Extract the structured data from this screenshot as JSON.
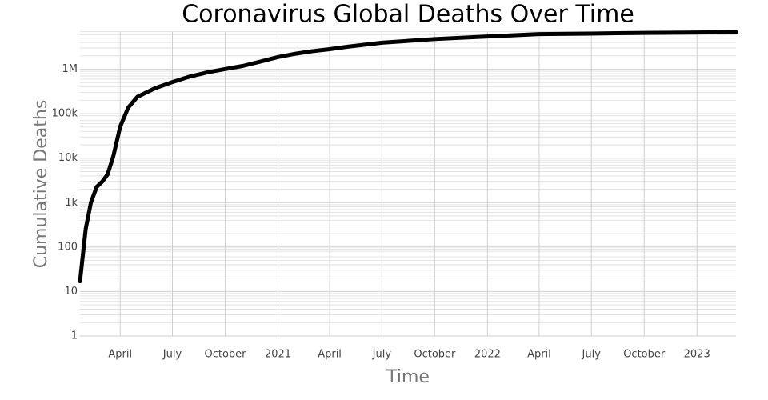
{
  "chart_data": {
    "type": "line",
    "title": "Coronavirus Global Deaths Over Time",
    "xlabel": "Time",
    "ylabel": "Cumulative Deaths",
    "yscale": "log",
    "grid": true,
    "x": [
      "2020-01-22",
      "2020-02-01",
      "2020-02-10",
      "2020-02-20",
      "2020-03-01",
      "2020-03-10",
      "2020-03-20",
      "2020-04-01",
      "2020-04-15",
      "2020-05-01",
      "2020-06-01",
      "2020-07-01",
      "2020-08-01",
      "2020-09-01",
      "2020-10-01",
      "2020-11-01",
      "2020-12-01",
      "2021-01-01",
      "2021-02-01",
      "2021-03-01",
      "2021-04-01",
      "2021-05-01",
      "2021-06-01",
      "2021-07-01",
      "2021-10-01",
      "2022-01-01",
      "2022-04-01",
      "2022-07-01",
      "2022-10-01",
      "2023-01-01",
      "2023-03-10"
    ],
    "series": [
      {
        "name": "Deaths",
        "color": "#000000",
        "values": [
          17,
          259,
          1000,
          2250,
          3000,
          4300,
          11000,
          51000,
          137000,
          240000,
          375000,
          515000,
          690000,
          855000,
          1010000,
          1190000,
          1480000,
          1880000,
          2240000,
          2540000,
          2830000,
          3200000,
          3560000,
          3950000,
          4780000,
          5450000,
          6180000,
          6350000,
          6560000,
          6700000,
          6880000
        ]
      }
    ],
    "xlim": [
      "2020-01-22",
      "2023-03-10"
    ],
    "xticks": [
      {
        "value": "2020-04-01",
        "label": "April"
      },
      {
        "value": "2020-07-01",
        "label": "July"
      },
      {
        "value": "2020-10-01",
        "label": "October"
      },
      {
        "value": "2021-01-01",
        "label": "2021"
      },
      {
        "value": "2021-04-01",
        "label": "April"
      },
      {
        "value": "2021-07-01",
        "label": "July"
      },
      {
        "value": "2021-10-01",
        "label": "October"
      },
      {
        "value": "2022-01-01",
        "label": "2022"
      },
      {
        "value": "2022-04-01",
        "label": "April"
      },
      {
        "value": "2022-07-01",
        "label": "July"
      },
      {
        "value": "2022-10-01",
        "label": "October"
      },
      {
        "value": "2023-01-01",
        "label": "2023"
      }
    ],
    "ylim": [
      1,
      7000000
    ],
    "yticks": [
      1,
      10,
      100,
      {
        "value": 1000,
        "label": "1k"
      },
      {
        "value": 10000,
        "label": "10k"
      },
      {
        "value": 100000,
        "label": "100k"
      },
      {
        "value": 1000000,
        "label": "1M"
      }
    ]
  }
}
